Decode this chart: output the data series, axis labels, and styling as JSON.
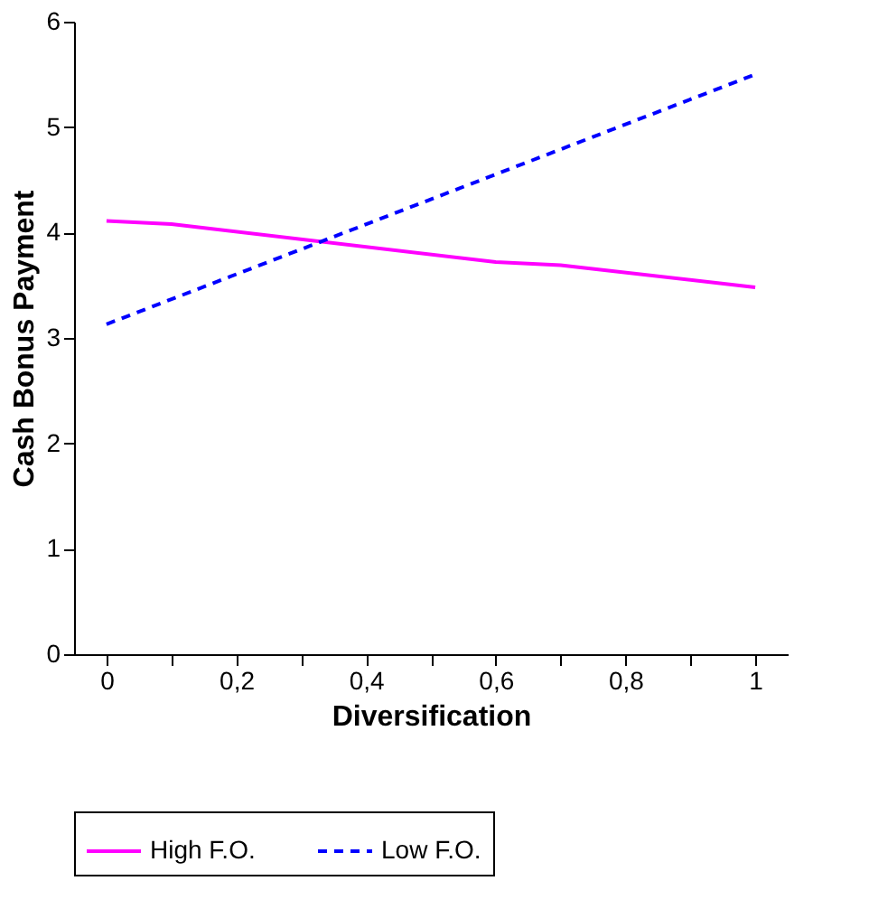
{
  "chart_data": {
    "type": "line",
    "xlabel": "Diversification",
    "ylabel": "Cash Bonus Payment",
    "series": [
      {
        "name": "High F.O.",
        "color": "#ff00ff",
        "line_style": "solid",
        "x": [
          0,
          0.1,
          0.6,
          0.7,
          1
        ],
        "values": [
          4.11,
          4.08,
          3.72,
          3.69,
          3.48
        ]
      },
      {
        "name": "Low F.O.",
        "color": "#0000ff",
        "line_style": "dashed",
        "x": [
          0,
          1
        ],
        "values": [
          3.13,
          5.5
        ]
      }
    ],
    "xlim": [
      -0.05,
      1.05
    ],
    "xticks": [
      0,
      {
        "value": 0.1,
        "label": null
      },
      {
        "value": 0.2,
        "label": "0,2"
      },
      {
        "value": 0.3,
        "label": null
      },
      {
        "value": 0.4,
        "label": "0,4"
      },
      {
        "value": 0.5,
        "label": null
      },
      {
        "value": 0.6,
        "label": "0,6"
      },
      {
        "value": 0.7,
        "label": null
      },
      {
        "value": 0.8,
        "label": "0,8"
      },
      {
        "value": 0.9,
        "label": null
      },
      1
    ],
    "ylim": [
      0,
      6
    ],
    "yticks": [
      0,
      1,
      2,
      3,
      4,
      5,
      6
    ],
    "legend": "bottom",
    "marker": "none"
  }
}
